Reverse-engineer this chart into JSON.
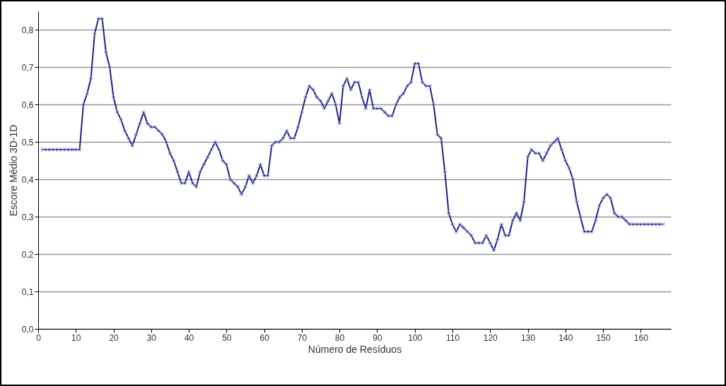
{
  "chart_data": {
    "type": "line",
    "xlabel": "Número de Resíduos",
    "ylabel": "Escore Médio 3D-1D",
    "x": [
      1,
      2,
      3,
      4,
      5,
      6,
      7,
      8,
      9,
      10,
      11,
      12,
      13,
      14,
      15,
      16,
      17,
      18,
      19,
      20,
      21,
      22,
      23,
      24,
      25,
      26,
      27,
      28,
      29,
      30,
      31,
      32,
      33,
      34,
      35,
      36,
      37,
      38,
      39,
      40,
      41,
      42,
      43,
      44,
      45,
      46,
      47,
      48,
      49,
      50,
      51,
      52,
      53,
      54,
      55,
      56,
      57,
      58,
      59,
      60,
      61,
      62,
      63,
      64,
      65,
      66,
      67,
      68,
      69,
      70,
      71,
      72,
      73,
      74,
      75,
      76,
      77,
      78,
      79,
      80,
      81,
      82,
      83,
      84,
      85,
      86,
      87,
      88,
      89,
      90,
      91,
      92,
      93,
      94,
      95,
      96,
      97,
      98,
      99,
      100,
      101,
      102,
      103,
      104,
      105,
      106,
      107,
      108,
      109,
      110,
      111,
      112,
      113,
      114,
      115,
      116,
      117,
      118,
      119,
      120,
      121,
      122,
      123,
      124,
      125,
      126,
      127,
      128,
      129,
      130,
      131,
      132,
      133,
      134,
      135,
      136,
      137,
      138,
      139,
      140,
      141,
      142,
      143,
      144,
      145,
      146,
      147,
      148,
      149,
      150,
      151,
      152,
      153,
      154,
      155,
      156,
      157,
      158,
      159,
      160,
      161,
      162,
      163,
      164,
      165,
      166
    ],
    "series": [
      {
        "color": "#1f1f8f",
        "values": [
          0.48,
          0.48,
          0.48,
          0.48,
          0.48,
          0.48,
          0.48,
          0.48,
          0.48,
          0.48,
          0.48,
          0.6,
          0.63,
          0.67,
          0.79,
          0.83,
          0.83,
          0.74,
          0.7,
          0.62,
          0.58,
          0.56,
          0.53,
          0.51,
          0.49,
          0.52,
          0.55,
          0.58,
          0.55,
          0.54,
          0.54,
          0.53,
          0.52,
          0.5,
          0.47,
          0.45,
          0.42,
          0.39,
          0.39,
          0.42,
          0.39,
          0.38,
          0.42,
          0.44,
          0.46,
          0.48,
          0.5,
          0.48,
          0.45,
          0.44,
          0.4,
          0.39,
          0.38,
          0.36,
          0.38,
          0.41,
          0.39,
          0.41,
          0.44,
          0.41,
          0.41,
          0.49,
          0.5,
          0.5,
          0.51,
          0.53,
          0.51,
          0.51,
          0.54,
          0.58,
          0.62,
          0.65,
          0.64,
          0.62,
          0.61,
          0.59,
          0.61,
          0.63,
          0.6,
          0.55,
          0.65,
          0.67,
          0.64,
          0.66,
          0.66,
          0.62,
          0.59,
          0.64,
          0.59,
          0.59,
          0.59,
          0.58,
          0.57,
          0.57,
          0.6,
          0.62,
          0.63,
          0.65,
          0.66,
          0.71,
          0.71,
          0.66,
          0.65,
          0.65,
          0.6,
          0.52,
          0.51,
          0.42,
          0.31,
          0.28,
          0.26,
          0.28,
          0.27,
          0.26,
          0.25,
          0.23,
          0.23,
          0.23,
          0.25,
          0.23,
          0.21,
          0.24,
          0.28,
          0.25,
          0.25,
          0.29,
          0.31,
          0.29,
          0.34,
          0.46,
          0.48,
          0.47,
          0.47,
          0.45,
          0.47,
          0.49,
          0.5,
          0.51,
          0.48,
          0.45,
          0.43,
          0.4,
          0.34,
          0.3,
          0.26,
          0.26,
          0.26,
          0.29,
          0.33,
          0.35,
          0.36,
          0.35,
          0.31,
          0.3,
          0.3,
          0.29,
          0.28,
          0.28,
          0.28,
          0.28,
          0.28,
          0.28,
          0.28,
          0.28,
          0.28,
          0.28
        ]
      }
    ],
    "xlim": [
      0,
      168
    ],
    "xticks": [
      0,
      10,
      20,
      30,
      40,
      50,
      60,
      70,
      80,
      90,
      100,
      110,
      120,
      130,
      140,
      150,
      160
    ],
    "ylim": [
      0,
      0.85
    ],
    "yticks": [
      {
        "value": 0,
        "label": "0,0"
      },
      {
        "value": 0.1,
        "label": "0,1"
      },
      {
        "value": 0.2,
        "label": "0,2"
      },
      {
        "value": 0.3,
        "label": "0,3"
      },
      {
        "value": 0.4,
        "label": "0,4"
      },
      {
        "value": 0.5,
        "label": "0,5"
      },
      {
        "value": 0.6,
        "label": "0,6"
      },
      {
        "value": 0.7,
        "label": "0,7"
      },
      {
        "value": 0.8,
        "label": "0,8"
      }
    ],
    "grid": "y",
    "marker": "circle",
    "line_style": "solid"
  }
}
